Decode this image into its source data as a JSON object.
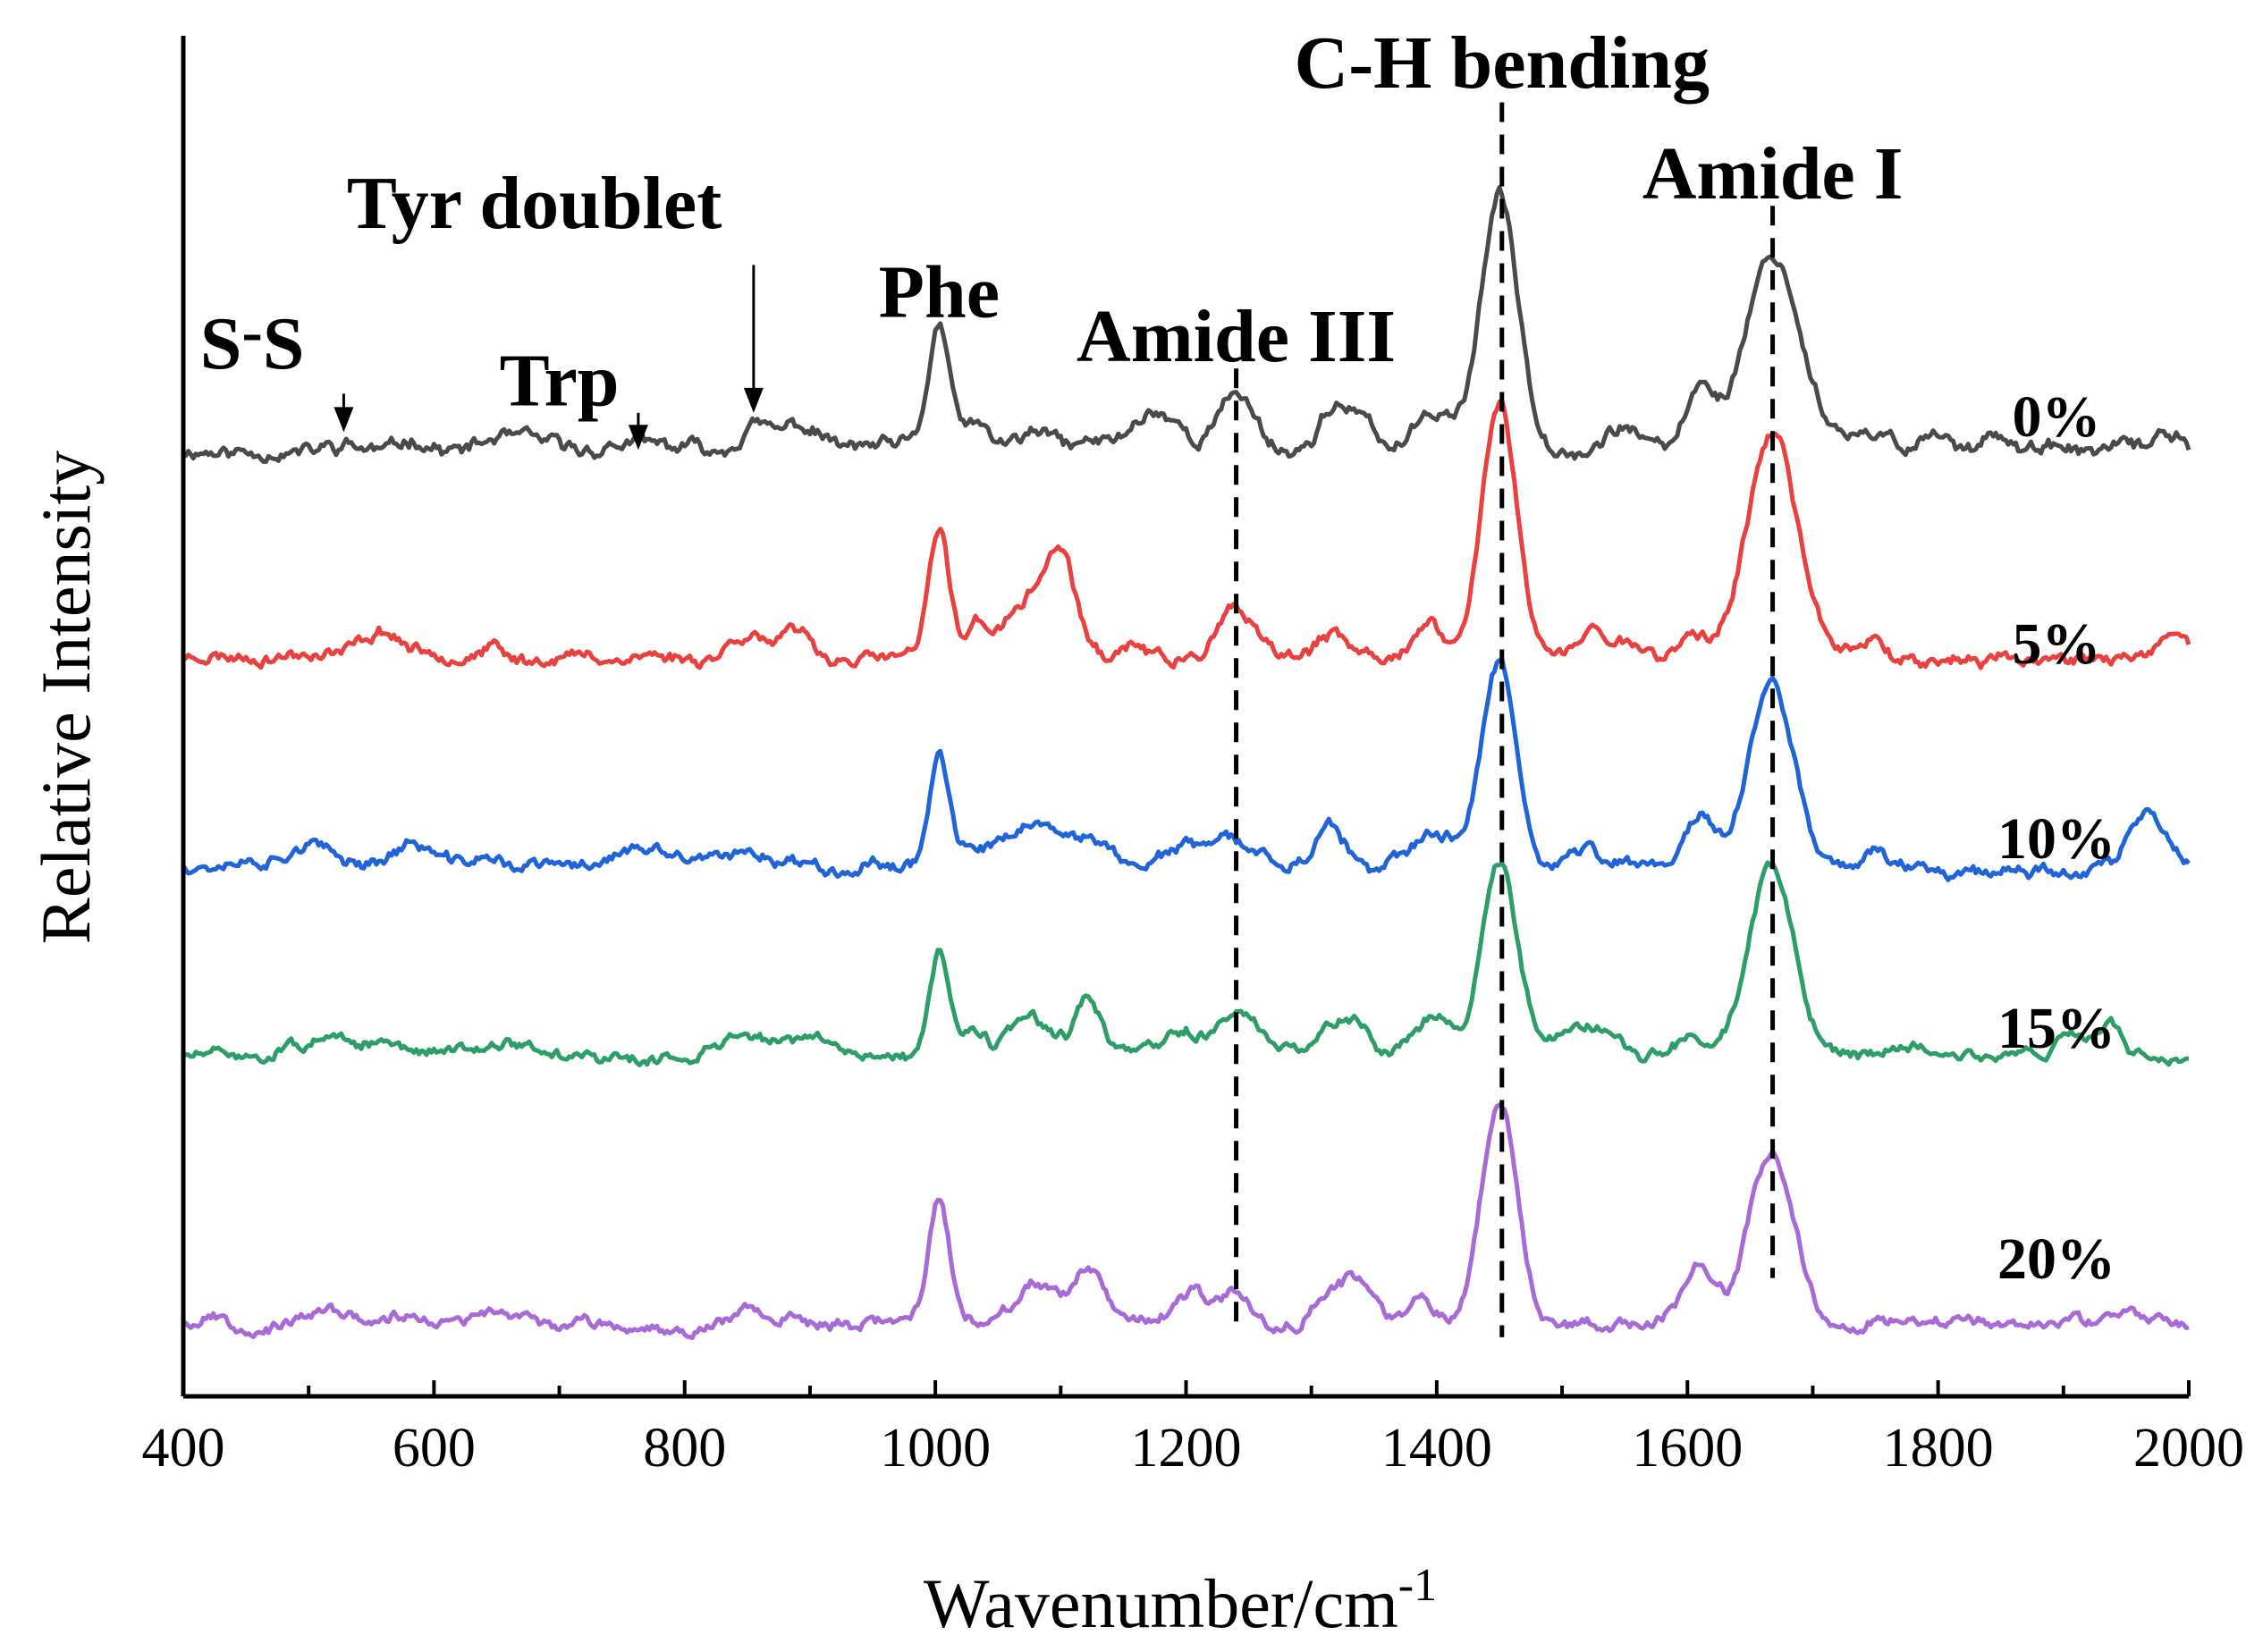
{
  "chart_data": {
    "type": "line",
    "title": "",
    "xlabel": "Wavenumber/cm",
    "xlabel_sup": "-1",
    "ylabel": "Relative Intensity",
    "xlim": [
      400,
      2000
    ],
    "ylim": [
      -0.4,
      8.8
    ],
    "x_ticks": [
      400,
      600,
      800,
      1000,
      1200,
      1400,
      1600,
      1800,
      2000
    ],
    "x_tick_labels": [
      "400",
      "600",
      "800",
      "1000",
      "1200",
      "1400",
      "1600",
      "1800",
      "2000"
    ],
    "y_ticks_shown": false,
    "grid": false,
    "peaks_note": "Raman spectra, vertically offset; values are relative intensity units",
    "series": [
      {
        "name": "0%",
        "color": "#4a4a4a",
        "baseline": 6.0,
        "noise": 0.05,
        "seed": 11,
        "peaks": [
          [
            530,
            0.06,
            14
          ],
          [
            585,
            0.08,
            14
          ],
          [
            665,
            0.09,
            20
          ],
          [
            760,
            0.05,
            12
          ],
          [
            855,
            0.18,
            12
          ],
          [
            890,
            0.17,
            16
          ],
          [
            1003,
            0.82,
            8
          ],
          [
            1030,
            0.18,
            9
          ],
          [
            1080,
            0.1,
            14
          ],
          [
            1125,
            0.05,
            10
          ],
          [
            1175,
            0.25,
            18
          ],
          [
            1240,
            0.38,
            14
          ],
          [
            1318,
            0.3,
            11
          ],
          [
            1340,
            0.17,
            9
          ],
          [
            1400,
            0.28,
            15
          ],
          [
            1450,
            1.72,
            15
          ],
          [
            1550,
            0.15,
            12
          ],
          [
            1610,
            0.42,
            11
          ],
          [
            1668,
            1.32,
            22
          ],
          [
            1750,
            0.08,
            14
          ],
          [
            1800,
            0.12,
            10
          ],
          [
            1843,
            0.16,
            8
          ],
          [
            1985,
            0.1,
            10
          ]
        ]
      },
      {
        "name": "5%",
        "color": "#e8413f",
        "baseline": 4.6,
        "noise": 0.045,
        "seed": 23,
        "peaks": [
          [
            560,
            0.15,
            14
          ],
          [
            645,
            0.08,
            10
          ],
          [
            840,
            0.1,
            10
          ],
          [
            855,
            0.14,
            8
          ],
          [
            890,
            0.16,
            14
          ],
          [
            1003,
            0.85,
            8
          ],
          [
            1035,
            0.24,
            10
          ],
          [
            1068,
            0.3,
            12
          ],
          [
            1098,
            0.72,
            13
          ],
          [
            1160,
            0.12,
            10
          ],
          [
            1240,
            0.3,
            14
          ],
          [
            1315,
            0.14,
            10
          ],
          [
            1395,
            0.22,
            12
          ],
          [
            1450,
            1.7,
            14
          ],
          [
            1525,
            0.16,
            12
          ],
          [
            1555,
            0.1,
            8
          ],
          [
            1605,
            0.12,
            12
          ],
          [
            1668,
            1.52,
            20
          ],
          [
            1748,
            0.12,
            10
          ],
          [
            1990,
            0.14,
            8
          ]
        ]
      },
      {
        "name": "10%",
        "color": "#1f64d8",
        "baseline": 3.2,
        "noise": 0.045,
        "seed": 37,
        "peaks": [
          [
            500,
            0.1,
            12
          ],
          [
            585,
            0.13,
            14
          ],
          [
            640,
            0.04,
            10
          ],
          [
            760,
            0.08,
            18
          ],
          [
            860,
            0.07,
            14
          ],
          [
            1003,
            0.75,
            8
          ],
          [
            1035,
            0.06,
            8
          ],
          [
            1078,
            0.24,
            18
          ],
          [
            1128,
            0.18,
            12
          ],
          [
            1200,
            0.12,
            18
          ],
          [
            1240,
            0.15,
            16
          ],
          [
            1315,
            0.22,
            11
          ],
          [
            1350,
            -0.12,
            12
          ],
          [
            1400,
            0.2,
            18
          ],
          [
            1450,
            1.38,
            14
          ],
          [
            1520,
            0.1,
            10
          ],
          [
            1610,
            0.36,
            12
          ],
          [
            1667,
            1.22,
            18
          ],
          [
            1750,
            0.08,
            10
          ],
          [
            1968,
            0.36,
            14
          ]
        ]
      },
      {
        "name": "15%",
        "color": "#2e9e68",
        "baseline": 1.9,
        "noise": 0.04,
        "seed": 51,
        "peaks": [
          [
            510,
            0.14,
            24
          ],
          [
            560,
            0.1,
            12
          ],
          [
            650,
            0.1,
            28
          ],
          [
            840,
            0.12,
            20
          ],
          [
            900,
            0.1,
            28
          ],
          [
            1003,
            0.72,
            8
          ],
          [
            1030,
            0.16,
            10
          ],
          [
            1075,
            0.25,
            16
          ],
          [
            1122,
            0.36,
            10
          ],
          [
            1200,
            0.15,
            14
          ],
          [
            1240,
            0.28,
            14
          ],
          [
            1318,
            0.22,
            11
          ],
          [
            1340,
            0.22,
            10
          ],
          [
            1395,
            0.26,
            15
          ],
          [
            1450,
            1.3,
            14
          ],
          [
            1520,
            0.2,
            28
          ],
          [
            1560,
            -0.1,
            12
          ],
          [
            1605,
            0.12,
            10
          ],
          [
            1667,
            1.25,
            18
          ],
          [
            1770,
            0.07,
            14
          ],
          [
            1905,
            0.16,
            10
          ],
          [
            1935,
            0.18,
            10
          ]
        ]
      },
      {
        "name": "20%",
        "color": "#a86ad6",
        "baseline": 0.1,
        "noise": 0.04,
        "seed": 67,
        "peaks": [
          [
            425,
            0.06,
            10
          ],
          [
            520,
            0.06,
            14
          ],
          [
            650,
            0.06,
            16
          ],
          [
            855,
            0.12,
            10
          ],
          [
            885,
            0.05,
            12
          ],
          [
            1003,
            0.8,
            8
          ],
          [
            1080,
            0.25,
            14
          ],
          [
            1122,
            0.33,
            11
          ],
          [
            1205,
            0.16,
            10
          ],
          [
            1240,
            0.22,
            12
          ],
          [
            1315,
            0.24,
            14
          ],
          [
            1340,
            0.28,
            12
          ],
          [
            1388,
            0.15,
            12
          ],
          [
            1450,
            1.52,
            14
          ],
          [
            1610,
            0.42,
            12
          ],
          [
            1667,
            1.18,
            18
          ],
          [
            1950,
            0.08,
            10
          ]
        ]
      }
    ],
    "dashed_markers": [
      {
        "x": 1240,
        "from": 0.1,
        "to": 6.55
      },
      {
        "x": 1452,
        "from": 0.0,
        "to": 8.35
      },
      {
        "x": 1668,
        "from": 0.4,
        "to": 7.65
      }
    ],
    "annotations": [
      {
        "text": "S",
        "text2": "S",
        "hyphen": true,
        "x": 455,
        "y": 6.55
      },
      {
        "text": "Trp",
        "x": 700,
        "y": 6.3
      },
      {
        "text": "Tyr doublet",
        "x": 680,
        "y": 7.5
      },
      {
        "text": "Phe",
        "x": 1003,
        "y": 6.9
      },
      {
        "text": "Amide III",
        "x": 1240,
        "y": 6.6
      },
      {
        "text": "C-H bending",
        "x": 1452,
        "y": 8.45
      },
      {
        "text": "Amide I",
        "x": 1668,
        "y": 7.7
      }
    ],
    "arrows": [
      {
        "x": 528,
        "from": 6.38,
        "to": 6.12
      },
      {
        "x": 763,
        "from": 6.25,
        "to": 6.0
      },
      {
        "x": 855,
        "from": 7.25,
        "to": 6.25
      }
    ]
  }
}
